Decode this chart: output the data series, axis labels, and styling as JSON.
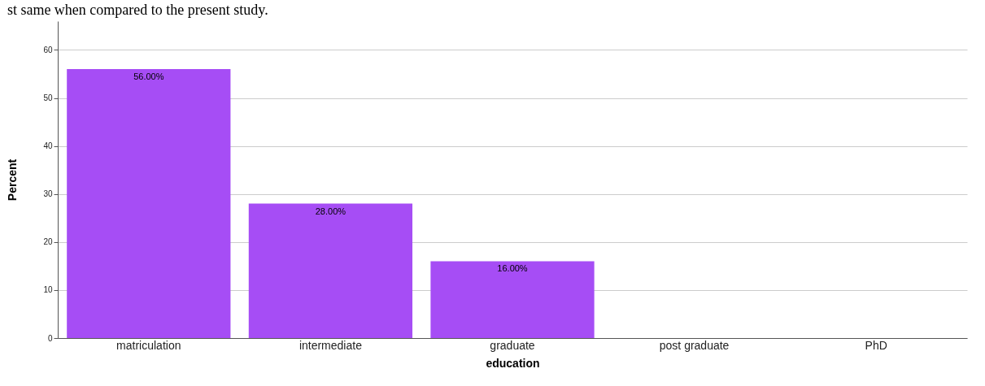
{
  "chart_data": {
    "type": "bar",
    "annotations": [
      "st same when compared to the present study."
    ],
    "xlabel": "education",
    "ylabel": "Percent",
    "categories": [
      "matriculation",
      "intermediate",
      "graduate",
      "post graduate",
      "PhD"
    ],
    "values": [
      56,
      28,
      16,
      0,
      0
    ],
    "color": "#a64df5",
    "value_labels": [
      "56.00%",
      "28.00%",
      "16.00%",
      null,
      null
    ],
    "ylim": [
      0,
      66
    ],
    "yticks": [
      0,
      10,
      20,
      30,
      40,
      50,
      60
    ],
    "grid": "y"
  }
}
